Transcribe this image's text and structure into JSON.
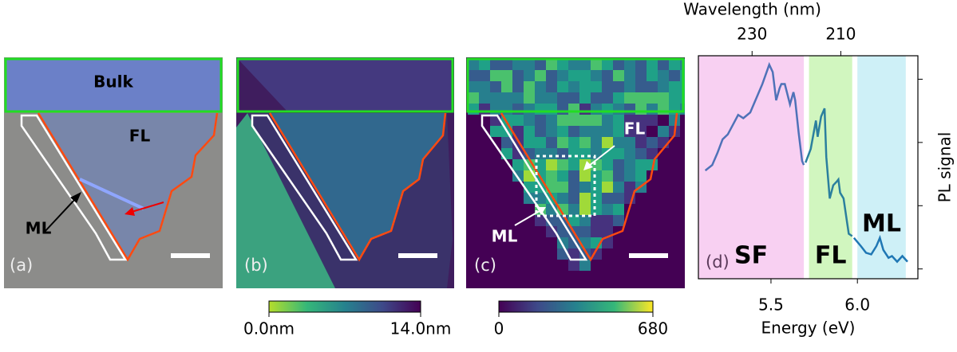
{
  "panels": [
    {
      "label": "(a)",
      "texts": [
        "Bulk",
        "FL",
        "ML"
      ]
    },
    {
      "label": "(b)"
    },
    {
      "label": "(c)",
      "texts": [
        "FL",
        "ML"
      ]
    },
    {
      "label": "(d)"
    }
  ],
  "colorbars": [
    {
      "lim": [
        0,
        14
      ],
      "ticks": [
        {
          "value": 0,
          "label": "0.0nm"
        },
        {
          "value": 14,
          "label": "14.0nm"
        }
      ],
      "colors": [
        "#b5de2b",
        "#35b779",
        "#26828e",
        "#3e4989",
        "#440154"
      ]
    },
    {
      "lim": [
        0,
        680
      ],
      "ticks": [
        0,
        680
      ],
      "colors": [
        "#440154",
        "#3e4989",
        "#26828e",
        "#35b779",
        "#fde725"
      ]
    }
  ],
  "chart_data": {
    "type": "line",
    "xlabel": "Energy (eV)",
    "x2label": "Wavelength (nm)",
    "ylabel": "PL signal",
    "xlim": [
      5.08,
      6.35
    ],
    "xticks": [
      5.5,
      {
        "value": 6,
        "label": "6.0"
      }
    ],
    "x2ticks": [
      230,
      210
    ],
    "ylim": [
      0.7,
      2350
    ],
    "yticks": [
      1,
      10,
      100,
      1000
    ],
    "log_y": true,
    "regions": [
      {
        "label": "SF",
        "span": [
          5.08,
          5.69
        ],
        "color": "#f7c8f0"
      },
      {
        "label": "FL",
        "span": [
          5.72,
          5.97
        ],
        "color": "#c9f5b4"
      },
      {
        "label": "ML",
        "span": [
          6.0,
          6.28
        ],
        "color": "#c6edf6"
      }
    ],
    "series": [
      {
        "name": "SF",
        "color": "#4f72b8",
        "x": [
          5.12,
          5.16,
          5.19,
          5.22,
          5.25,
          5.28,
          5.31,
          5.34,
          5.38,
          5.42,
          5.45,
          5.49,
          5.51,
          5.53,
          5.55,
          5.56,
          5.58,
          5.61,
          5.63,
          5.64,
          5.66,
          5.68,
          5.69
        ],
        "values": [
          36,
          44,
          68,
          112,
          134,
          191,
          273,
          242,
          298,
          538,
          838,
          1700,
          1300,
          464,
          723,
          838,
          838,
          400,
          624,
          464,
          143,
          51,
          44
        ]
      },
      {
        "name": "FL",
        "color": "#2b7f9e",
        "x": [
          5.7,
          5.73,
          5.76,
          5.77,
          5.79,
          5.81,
          5.82,
          5.84,
          5.86,
          5.88,
          5.89,
          5.9,
          5.92,
          5.94,
          5.95,
          5.97
        ],
        "values": [
          48,
          79,
          222,
          123,
          257,
          345,
          59,
          13,
          21,
          24,
          26,
          16,
          13,
          5.5,
          3.6,
          3.3
        ]
      },
      {
        "name": "ML",
        "color": "#1f77b4",
        "x": [
          5.98,
          6.02,
          6.05,
          6.08,
          6.11,
          6.13,
          6.15,
          6.18,
          6.2,
          6.23,
          6.26,
          6.29
        ],
        "values": [
          3.1,
          2.3,
          1.8,
          1.7,
          2.3,
          3.1,
          2,
          1.5,
          1.6,
          1.3,
          1.6,
          1.3
        ]
      }
    ]
  }
}
